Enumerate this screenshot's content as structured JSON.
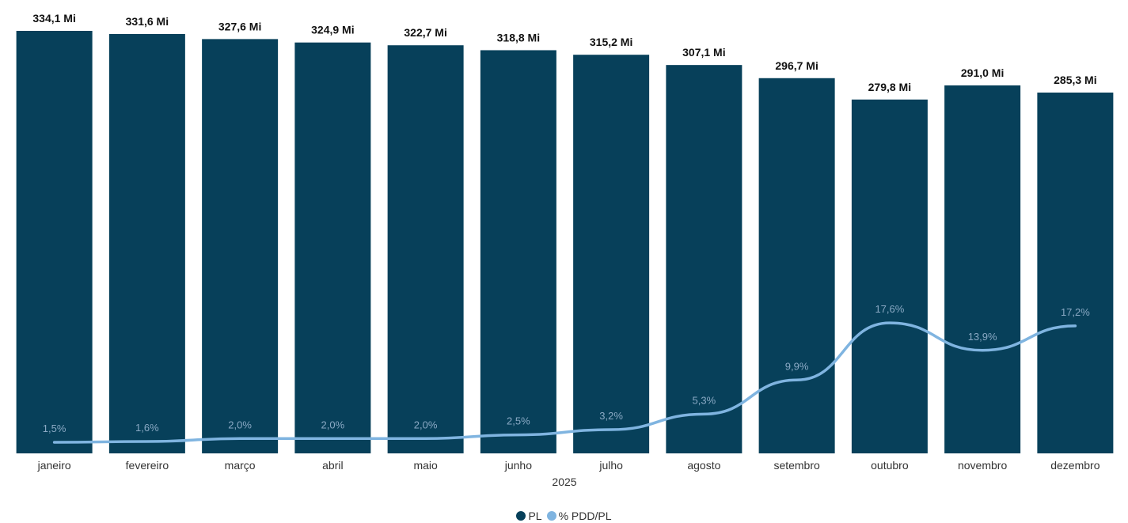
{
  "chart_data": {
    "type": "bar",
    "categories": [
      "janeiro",
      "fevereiro",
      "março",
      "abril",
      "maio",
      "junho",
      "julho",
      "agosto",
      "setembro",
      "outubro",
      "novembro",
      "dezembro"
    ],
    "xlabel": "2025",
    "series": [
      {
        "name": "PL",
        "type": "bar",
        "color": "#07405a",
        "values": [
          334.1,
          331.6,
          327.6,
          324.9,
          322.7,
          318.8,
          315.2,
          307.1,
          296.7,
          279.8,
          291.0,
          285.3
        ],
        "labels": [
          "334,1 Mi",
          "331,6 Mi",
          "327,6 Mi",
          "324,9 Mi",
          "322,7 Mi",
          "318,8 Mi",
          "315,2 Mi",
          "307,1 Mi",
          "296,7 Mi",
          "279,8 Mi",
          "291,0 Mi",
          "285,3 Mi"
        ]
      },
      {
        "name": "% PDD/PL",
        "type": "line",
        "color": "#7fb4e0",
        "values": [
          1.5,
          1.6,
          2.0,
          2.0,
          2.0,
          2.5,
          3.2,
          5.3,
          9.9,
          17.6,
          13.9,
          17.2
        ],
        "labels": [
          "1,5%",
          "1,6%",
          "2,0%",
          "2,0%",
          "2,0%",
          "2,5%",
          "3,2%",
          "5,3%",
          "9,9%",
          "17,6%",
          "13,9%",
          "17,2%"
        ]
      }
    ],
    "ylim_bar": [
      0,
      334.1
    ],
    "ylim_line": [
      0,
      57
    ],
    "legend_position": "bottom-center",
    "grid": false
  }
}
